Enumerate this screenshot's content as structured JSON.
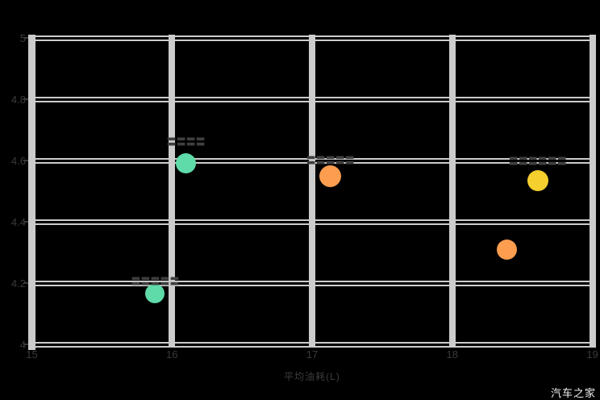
{
  "watermark": "汽车之家",
  "colors": {
    "background": "#000000",
    "grid": "#cccccc",
    "axis_band": "#cbcbcb",
    "tick_text": "#3a3a3a",
    "label_text": "#3f3f3f",
    "watermark_text": "#f2f2f2",
    "teal": "#5FDAA9",
    "orange": "#FC9D4F",
    "yellow": "#F4CF2E"
  },
  "chart_data": {
    "type": "scatter",
    "title": "",
    "xlabel": "平均油耗(L)",
    "ylabel": "",
    "xlim": [
      15,
      19
    ],
    "ylim": [
      4,
      5
    ],
    "grid": true,
    "legend_position": "none",
    "x_ticks": [
      "15",
      "16",
      "17",
      "18",
      "19"
    ],
    "x_tick_values": [
      15,
      16,
      17,
      18,
      19
    ],
    "y_ticks": [
      "5",
      "4.8",
      "4.6",
      "4.4",
      "4.2",
      "4"
    ],
    "y_tick_values": [
      5,
      4.8,
      4.6,
      4.4,
      4.2,
      4
    ],
    "series": [
      {
        "name": "teal-bubbles",
        "color_key": "teal",
        "points": [
          {
            "x": 16.1,
            "y": 4.59,
            "r": 12.5,
            "label": "〓〓〓〓",
            "label_dy": -27
          },
          {
            "x": 15.88,
            "y": 4.165,
            "r": 12,
            "label": "〓〓〓〓〓",
            "label_dy": -15
          }
        ]
      },
      {
        "name": "orange-bubbles",
        "color_key": "orange",
        "points": [
          {
            "x": 17.13,
            "y": 4.55,
            "r": 13.5,
            "label": "〓〓〓〓〓",
            "label_dy": -19
          },
          {
            "x": 18.39,
            "y": 4.31,
            "r": 12.5,
            "label": "",
            "label_dy": 0
          }
        ]
      },
      {
        "name": "yellow-bubbles",
        "color_key": "yellow",
        "points": [
          {
            "x": 18.61,
            "y": 4.535,
            "r": 13,
            "label": "〓〓〓〓〓〓",
            "label_dy": -24
          }
        ]
      }
    ]
  }
}
